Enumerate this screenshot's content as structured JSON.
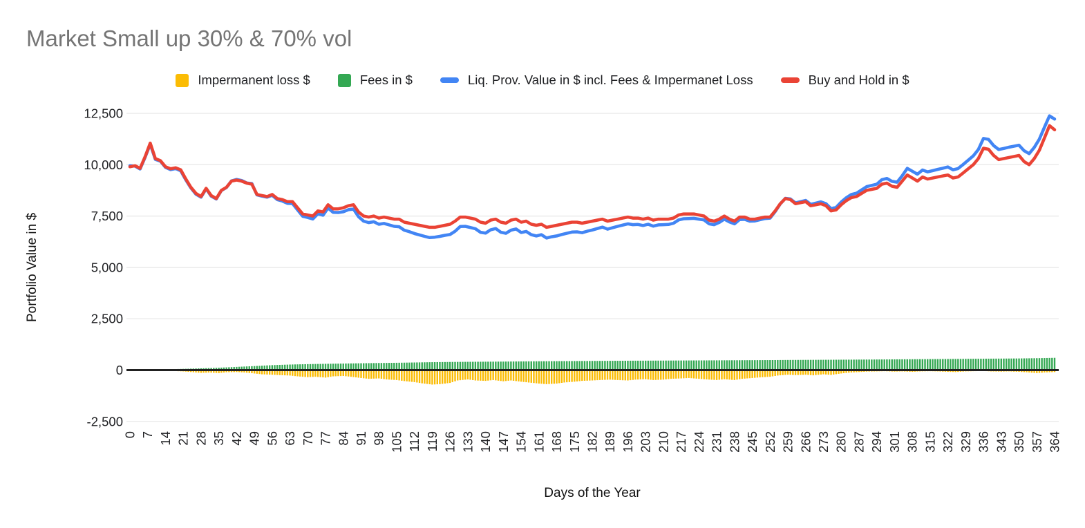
{
  "title": "Market Small up 30% & 70% vol",
  "legend": [
    {
      "label": "Impermanent loss $",
      "color": "#FBBC04",
      "marker": "square"
    },
    {
      "label": "Fees in $",
      "color": "#34A853",
      "marker": "square"
    },
    {
      "label": "Liq. Prov. Value in $ incl. Fees & Impermanet Loss",
      "color": "#4285F4",
      "marker": "line"
    },
    {
      "label": "Buy and Hold in $",
      "color": "#EA4335",
      "marker": "line"
    }
  ],
  "chart_data": {
    "type": "combo-bar-line",
    "title": "Market Small up 30% & 70% vol",
    "xlabel": "Days of the Year",
    "ylabel": "Portfolio Value in $",
    "xlim": [
      0,
      364
    ],
    "ylim": [
      -2500,
      12500
    ],
    "grid": true,
    "grid_color": "#e6e6e6",
    "zero_baseline_color": "#212121",
    "legend_position": "top",
    "x_ticks": [
      0,
      7,
      14,
      21,
      28,
      35,
      42,
      49,
      56,
      63,
      70,
      77,
      84,
      91,
      98,
      105,
      112,
      119,
      126,
      133,
      140,
      147,
      154,
      161,
      168,
      175,
      182,
      189,
      196,
      203,
      210,
      217,
      224,
      231,
      238,
      245,
      252,
      259,
      266,
      273,
      280,
      287,
      294,
      301,
      308,
      315,
      322,
      329,
      336,
      343,
      350,
      357,
      364
    ],
    "y_ticks": [
      -2500,
      0,
      2500,
      5000,
      7500,
      10000,
      12500
    ],
    "series": [
      {
        "name": "Impermanent loss $",
        "type": "bar",
        "color": "#FBBC04",
        "note": "negative daily bars; anchors are [day, $] read from chart, daily bars interpolated",
        "anchors": [
          [
            0,
            0
          ],
          [
            4,
            -10
          ],
          [
            7,
            -20
          ],
          [
            10,
            -15
          ],
          [
            14,
            -30
          ],
          [
            17,
            -45
          ],
          [
            21,
            -65
          ],
          [
            24,
            -95
          ],
          [
            28,
            -135
          ],
          [
            31,
            -120
          ],
          [
            35,
            -145
          ],
          [
            38,
            -105
          ],
          [
            42,
            -95
          ],
          [
            45,
            -115
          ],
          [
            49,
            -165
          ],
          [
            52,
            -205
          ],
          [
            56,
            -225
          ],
          [
            59,
            -245
          ],
          [
            63,
            -265
          ],
          [
            66,
            -305
          ],
          [
            70,
            -345
          ],
          [
            73,
            -325
          ],
          [
            77,
            -365
          ],
          [
            80,
            -305
          ],
          [
            84,
            -285
          ],
          [
            87,
            -325
          ],
          [
            91,
            -385
          ],
          [
            94,
            -425
          ],
          [
            98,
            -405
          ],
          [
            101,
            -455
          ],
          [
            105,
            -485
          ],
          [
            108,
            -535
          ],
          [
            112,
            -585
          ],
          [
            115,
            -645
          ],
          [
            119,
            -705
          ],
          [
            122,
            -685
          ],
          [
            126,
            -625
          ],
          [
            129,
            -505
          ],
          [
            133,
            -455
          ],
          [
            136,
            -505
          ],
          [
            140,
            -525
          ],
          [
            143,
            -485
          ],
          [
            147,
            -545
          ],
          [
            150,
            -505
          ],
          [
            154,
            -565
          ],
          [
            157,
            -605
          ],
          [
            161,
            -655
          ],
          [
            164,
            -685
          ],
          [
            168,
            -655
          ],
          [
            171,
            -605
          ],
          [
            175,
            -565
          ],
          [
            178,
            -525
          ],
          [
            182,
            -505
          ],
          [
            185,
            -485
          ],
          [
            189,
            -465
          ],
          [
            192,
            -485
          ],
          [
            196,
            -505
          ],
          [
            199,
            -465
          ],
          [
            203,
            -445
          ],
          [
            206,
            -485
          ],
          [
            210,
            -465
          ],
          [
            213,
            -425
          ],
          [
            217,
            -405
          ],
          [
            220,
            -385
          ],
          [
            224,
            -425
          ],
          [
            227,
            -455
          ],
          [
            231,
            -485
          ],
          [
            234,
            -445
          ],
          [
            238,
            -485
          ],
          [
            241,
            -425
          ],
          [
            245,
            -385
          ],
          [
            248,
            -355
          ],
          [
            252,
            -325
          ],
          [
            255,
            -265
          ],
          [
            259,
            -225
          ],
          [
            262,
            -245
          ],
          [
            266,
            -225
          ],
          [
            269,
            -255
          ],
          [
            273,
            -205
          ],
          [
            276,
            -235
          ],
          [
            280,
            -165
          ],
          [
            283,
            -125
          ],
          [
            287,
            -95
          ],
          [
            290,
            -75
          ],
          [
            294,
            -65
          ],
          [
            297,
            -55
          ],
          [
            301,
            -75
          ],
          [
            304,
            -65
          ],
          [
            308,
            -85
          ],
          [
            311,
            -65
          ],
          [
            315,
            -55
          ],
          [
            318,
            -65
          ],
          [
            322,
            -85
          ],
          [
            325,
            -95
          ],
          [
            329,
            -65
          ],
          [
            332,
            -55
          ],
          [
            336,
            -45
          ],
          [
            339,
            -65
          ],
          [
            343,
            -75
          ],
          [
            346,
            -65
          ],
          [
            350,
            -85
          ],
          [
            353,
            -105
          ],
          [
            357,
            -145
          ],
          [
            360,
            -115
          ],
          [
            364,
            -95
          ]
        ]
      },
      {
        "name": "Fees in $",
        "type": "bar",
        "color": "#34A853",
        "note": "positive daily bars; anchors are [day, $] read from chart, daily bars interpolated",
        "anchors": [
          [
            0,
            0
          ],
          [
            7,
            15
          ],
          [
            14,
            35
          ],
          [
            21,
            60
          ],
          [
            28,
            85
          ],
          [
            35,
            115
          ],
          [
            42,
            155
          ],
          [
            49,
            195
          ],
          [
            56,
            240
          ],
          [
            63,
            270
          ],
          [
            70,
            290
          ],
          [
            77,
            305
          ],
          [
            84,
            318
          ],
          [
            91,
            332
          ],
          [
            98,
            345
          ],
          [
            105,
            356
          ],
          [
            112,
            370
          ],
          [
            119,
            385
          ],
          [
            126,
            395
          ],
          [
            133,
            402
          ],
          [
            140,
            408
          ],
          [
            147,
            414
          ],
          [
            154,
            422
          ],
          [
            161,
            430
          ],
          [
            168,
            436
          ],
          [
            175,
            441
          ],
          [
            182,
            446
          ],
          [
            189,
            451
          ],
          [
            196,
            456
          ],
          [
            203,
            459
          ],
          [
            210,
            463
          ],
          [
            217,
            467
          ],
          [
            224,
            471
          ],
          [
            231,
            475
          ],
          [
            238,
            479
          ],
          [
            245,
            483
          ],
          [
            252,
            487
          ],
          [
            259,
            493
          ],
          [
            266,
            497
          ],
          [
            273,
            501
          ],
          [
            280,
            506
          ],
          [
            287,
            511
          ],
          [
            294,
            516
          ],
          [
            301,
            522
          ],
          [
            308,
            528
          ],
          [
            315,
            534
          ],
          [
            322,
            540
          ],
          [
            329,
            547
          ],
          [
            336,
            554
          ],
          [
            343,
            560
          ],
          [
            350,
            567
          ],
          [
            357,
            580
          ],
          [
            364,
            598
          ]
        ]
      },
      {
        "name": "Liq. Prov. Value in $ incl. Fees & Impermanet Loss",
        "type": "line",
        "color": "#4285F4",
        "x_start": 0,
        "x_step": 2,
        "values": [
          9950,
          9930,
          9790,
          10370,
          11000,
          10260,
          10170,
          9870,
          9760,
          9810,
          9700,
          9260,
          8870,
          8560,
          8420,
          8830,
          8470,
          8330,
          8740,
          8890,
          9210,
          9280,
          9230,
          9110,
          9080,
          8530,
          8470,
          8420,
          8510,
          8300,
          8230,
          8120,
          8110,
          7800,
          7490,
          7430,
          7360,
          7610,
          7540,
          7890,
          7680,
          7670,
          7710,
          7810,
          7840,
          7470,
          7250,
          7180,
          7220,
          7100,
          7140,
          7070,
          7000,
          6980,
          6810,
          6740,
          6650,
          6580,
          6510,
          6450,
          6470,
          6510,
          6560,
          6600,
          6760,
          6990,
          7000,
          6940,
          6880,
          6710,
          6670,
          6830,
          6890,
          6710,
          6660,
          6810,
          6870,
          6700,
          6750,
          6590,
          6530,
          6590,
          6430,
          6490,
          6530,
          6600,
          6660,
          6720,
          6730,
          6690,
          6760,
          6820,
          6890,
          6960,
          6860,
          6930,
          7000,
          7060,
          7120,
          7080,
          7090,
          7040,
          7100,
          7010,
          7070,
          7080,
          7090,
          7150,
          7310,
          7370,
          7380,
          7390,
          7350,
          7310,
          7120,
          7080,
          7190,
          7350,
          7210,
          7120,
          7330,
          7340,
          7250,
          7260,
          7320,
          7380,
          7400,
          7720,
          8090,
          8360,
          8330,
          8140,
          8200,
          8260,
          8070,
          8130,
          8190,
          8100,
          7860,
          7920,
          8180,
          8390,
          8550,
          8610,
          8770,
          8930,
          8990,
          9050,
          9270,
          9330,
          9190,
          9150,
          9460,
          9820,
          9680,
          9540,
          9740,
          9650,
          9710,
          9770,
          9830,
          9890,
          9750,
          9810,
          10010,
          10220,
          10430,
          10740,
          11280,
          11230,
          10930,
          10740,
          10790,
          10850,
          10900,
          10950,
          10680,
          10540,
          10840,
          11240,
          11820,
          12380,
          12220
        ]
      },
      {
        "name": "Buy and Hold in $",
        "type": "line",
        "color": "#EA4335",
        "x_start": 0,
        "x_step": 2,
        "values": [
          9900,
          9950,
          9820,
          10400,
          11050,
          10300,
          10200,
          9900,
          9800,
          9850,
          9750,
          9300,
          8900,
          8600,
          8450,
          8850,
          8500,
          8350,
          8750,
          8900,
          9200,
          9250,
          9200,
          9100,
          9050,
          8550,
          8500,
          8450,
          8550,
          8350,
          8300,
          8200,
          8200,
          7900,
          7600,
          7550,
          7500,
          7750,
          7700,
          8050,
          7850,
          7850,
          7900,
          8000,
          8050,
          7700,
          7500,
          7450,
          7500,
          7400,
          7450,
          7400,
          7350,
          7350,
          7200,
          7150,
          7100,
          7050,
          7000,
          6950,
          6950,
          7000,
          7050,
          7100,
          7250,
          7450,
          7450,
          7400,
          7350,
          7200,
          7150,
          7300,
          7350,
          7200,
          7150,
          7300,
          7350,
          7200,
          7250,
          7100,
          7050,
          7100,
          6950,
          7000,
          7050,
          7100,
          7150,
          7200,
          7200,
          7150,
          7200,
          7250,
          7300,
          7350,
          7250,
          7300,
          7350,
          7400,
          7450,
          7400,
          7400,
          7350,
          7400,
          7300,
          7350,
          7350,
          7350,
          7400,
          7550,
          7600,
          7600,
          7600,
          7550,
          7500,
          7300,
          7250,
          7350,
          7500,
          7350,
          7250,
          7450,
          7450,
          7350,
          7350,
          7400,
          7450,
          7450,
          7750,
          8100,
          8350,
          8300,
          8100,
          8150,
          8200,
          8000,
          8050,
          8100,
          8000,
          7750,
          7800,
          8050,
          8250,
          8400,
          8450,
          8600,
          8750,
          8800,
          8850,
          9050,
          9100,
          8950,
          8900,
          9200,
          9500,
          9350,
          9200,
          9400,
          9300,
          9350,
          9400,
          9450,
          9500,
          9350,
          9400,
          9600,
          9800,
          10000,
          10300,
          10800,
          10750,
          10450,
          10250,
          10300,
          10350,
          10400,
          10450,
          10150,
          10000,
          10300,
          10700,
          11300,
          11900,
          11700
        ]
      }
    ]
  }
}
